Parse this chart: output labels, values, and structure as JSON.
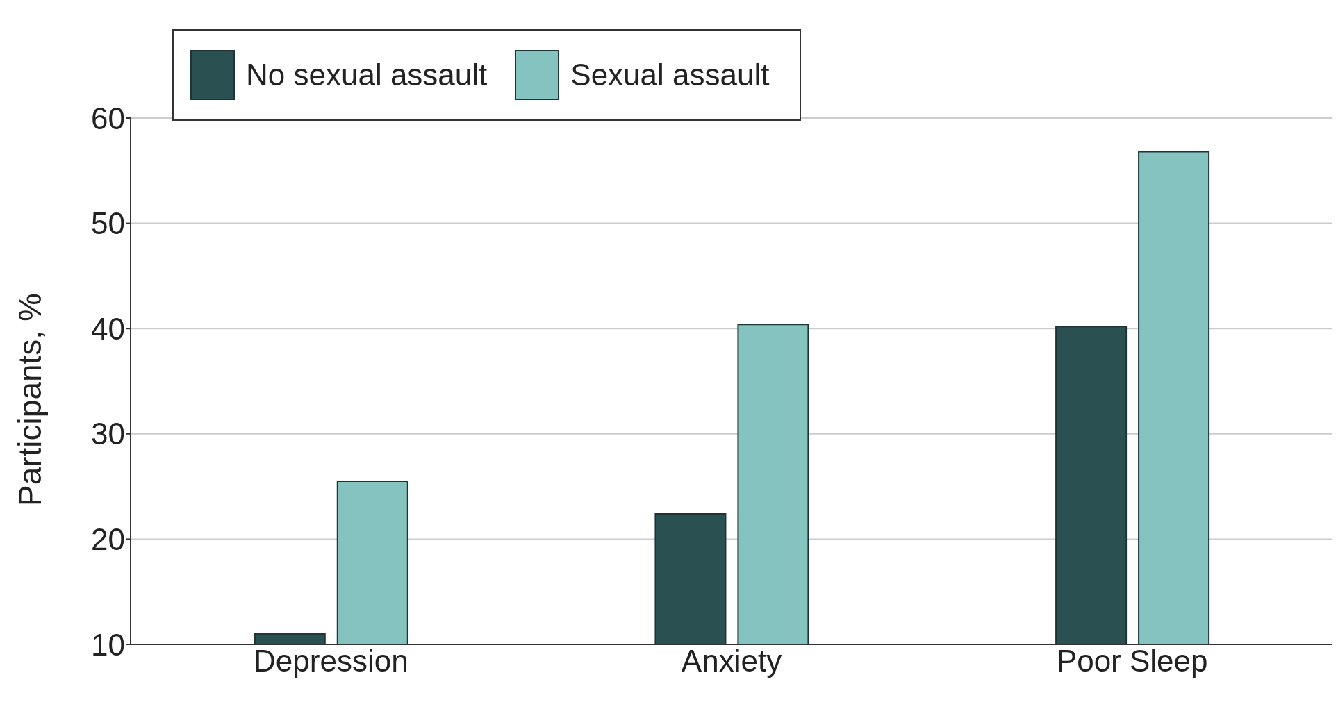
{
  "chart_data": {
    "type": "bar",
    "ylabel": "Participants, %",
    "categories": [
      "Depression",
      "Anxiety",
      "Poor Sleep"
    ],
    "series": [
      {
        "name": "No sexual assault",
        "color": "#2a5052",
        "values": [
          11.0,
          22.4,
          40.2
        ]
      },
      {
        "name": "Sexual assault",
        "color": "#84c3c0",
        "values": [
          25.5,
          40.4,
          56.8
        ]
      }
    ],
    "ylim": [
      10,
      60
    ],
    "yticks": [
      10,
      20,
      30,
      40,
      50,
      60
    ],
    "grid": "y",
    "legend": "top left"
  }
}
